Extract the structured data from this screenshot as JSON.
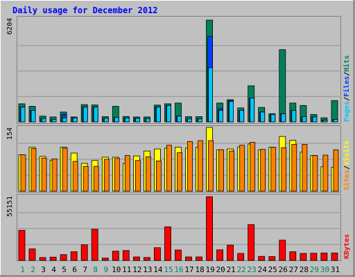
{
  "title": "Daily usage for December 2012",
  "colors": {
    "background": "#c0c0c0",
    "title": "#0000ff",
    "hits": "#00805c",
    "files": "#0040ff",
    "pages": "#00c8ff",
    "visits": "#ffff00",
    "sites": "#ff8000",
    "kbytes": "#ff0000",
    "day_weekday": "#000000",
    "day_weekend": "#00805c"
  },
  "chart_data": [
    {
      "type": "bar",
      "panel": "hits-files-pages",
      "ymax_label": "6204",
      "ylim": [
        0,
        6204
      ],
      "legend": [
        "Pages",
        "Files",
        "Hits"
      ],
      "categories": [
        "1",
        "2",
        "3",
        "4",
        "5",
        "6",
        "7",
        "8",
        "9",
        "10",
        "11",
        "12",
        "13",
        "14",
        "15",
        "16",
        "17",
        "18",
        "19",
        "20",
        "21",
        "22",
        "23",
        "24",
        "25",
        "26",
        "27",
        "28",
        "29",
        "30",
        "31"
      ],
      "weekend_days": [
        "1",
        "2",
        "8",
        "9",
        "15",
        "16",
        "22",
        "23",
        "29",
        "30"
      ],
      "series": [
        {
          "name": "Hits",
          "values": [
            1100,
            950,
            350,
            300,
            600,
            300,
            1050,
            1030,
            320,
            950,
            330,
            300,
            300,
            1020,
            1100,
            1150,
            320,
            320,
            6204,
            1150,
            1350,
            850,
            2200,
            880,
            500,
            4400,
            1150,
            1000,
            450,
            250,
            1300
          ]
        },
        {
          "name": "Files",
          "values": [
            900,
            700,
            200,
            150,
            450,
            250,
            900,
            900,
            220,
            280,
            240,
            220,
            200,
            900,
            1000,
            350,
            180,
            180,
            5200,
            800,
            1300,
            700,
            1450,
            600,
            450,
            500,
            700,
            320,
            300,
            100,
            150
          ]
        },
        {
          "name": "Pages",
          "values": [
            900,
            700,
            200,
            150,
            250,
            250,
            900,
            900,
            220,
            280,
            240,
            220,
            200,
            900,
            1000,
            350,
            180,
            180,
            3300,
            700,
            1250,
            700,
            1450,
            600,
            450,
            500,
            700,
            320,
            300,
            100,
            150
          ]
        }
      ]
    },
    {
      "type": "bar",
      "panel": "visits-sites",
      "ymax_label": "154",
      "ylim": [
        0,
        154
      ],
      "legend": [
        "Sites",
        "Visits"
      ],
      "categories": [
        "1",
        "2",
        "3",
        "4",
        "5",
        "6",
        "7",
        "8",
        "9",
        "10",
        "11",
        "12",
        "13",
        "14",
        "15",
        "16",
        "17",
        "18",
        "19",
        "20",
        "21",
        "22",
        "23",
        "24",
        "25",
        "26",
        "27",
        "28",
        "29",
        "30",
        "31"
      ],
      "series": [
        {
          "name": "Visits",
          "values": [
            88,
            106,
            84,
            74,
            106,
            92,
            67,
            74,
            82,
            82,
            67,
            85,
            97,
            102,
            104,
            106,
            104,
            106,
            154,
            100,
            102,
            107,
            114,
            100,
            106,
            132,
            123,
            94,
            86,
            59,
            58
          ]
        },
        {
          "name": "Sites",
          "values": [
            88,
            103,
            80,
            78,
            104,
            72,
            60,
            60,
            77,
            79,
            86,
            74,
            83,
            73,
            111,
            93,
            120,
            122,
            122,
            100,
            97,
            111,
            118,
            101,
            106,
            105,
            113,
            113,
            86,
            87,
            100
          ]
        }
      ]
    },
    {
      "type": "bar",
      "panel": "kbytes",
      "ymax_label": "55151",
      "ylim": [
        0,
        55151
      ],
      "legend": [
        "KBytes"
      ],
      "categories": [
        "1",
        "2",
        "3",
        "4",
        "5",
        "6",
        "7",
        "8",
        "9",
        "10",
        "11",
        "12",
        "13",
        "14",
        "15",
        "16",
        "17",
        "18",
        "19",
        "20",
        "21",
        "22",
        "23",
        "24",
        "25",
        "26",
        "27",
        "28",
        "29",
        "30",
        "31"
      ],
      "series": [
        {
          "name": "KBytes",
          "values": [
            26000,
            10000,
            2500,
            2800,
            5000,
            7500,
            13500,
            27000,
            2000,
            8000,
            8500,
            3000,
            2500,
            11000,
            29000,
            9000,
            3000,
            3000,
            55151,
            9200,
            13200,
            6000,
            31000,
            3500,
            3300,
            17500,
            7500,
            6000,
            6200,
            6400,
            6400
          ]
        }
      ]
    }
  ]
}
